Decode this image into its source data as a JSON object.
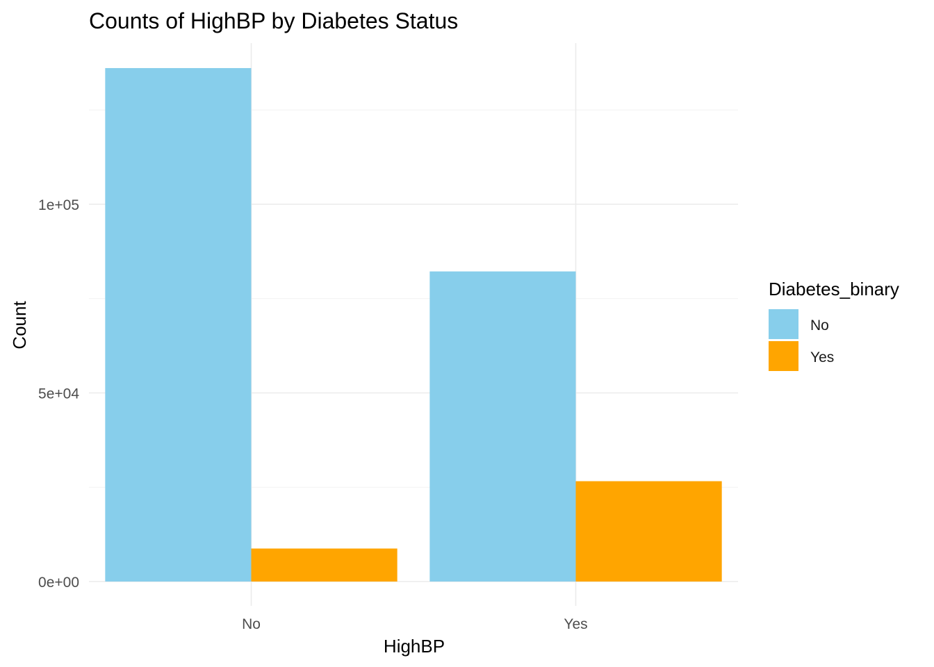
{
  "chart_data": {
    "type": "bar",
    "title": "Counts of HighBP by Diabetes Status",
    "xlabel": "HighBP",
    "ylabel": "Count",
    "categories": [
      "No",
      "Yes"
    ],
    "series": [
      {
        "name": "No",
        "values": [
          136100,
          82200
        ],
        "color": "#87CEEB"
      },
      {
        "name": "Yes",
        "values": [
          8750,
          26600
        ],
        "color": "#FFA500"
      }
    ],
    "ylim": [
      -5000,
      142000
    ],
    "y_ticks": [
      0,
      50000,
      100000
    ],
    "y_tick_labels": [
      "0e+00",
      "5e+04",
      "1e+05"
    ],
    "grid": true,
    "legend": {
      "title": "Diabetes_binary",
      "position": "right",
      "entries": [
        "No",
        "Yes"
      ]
    }
  }
}
